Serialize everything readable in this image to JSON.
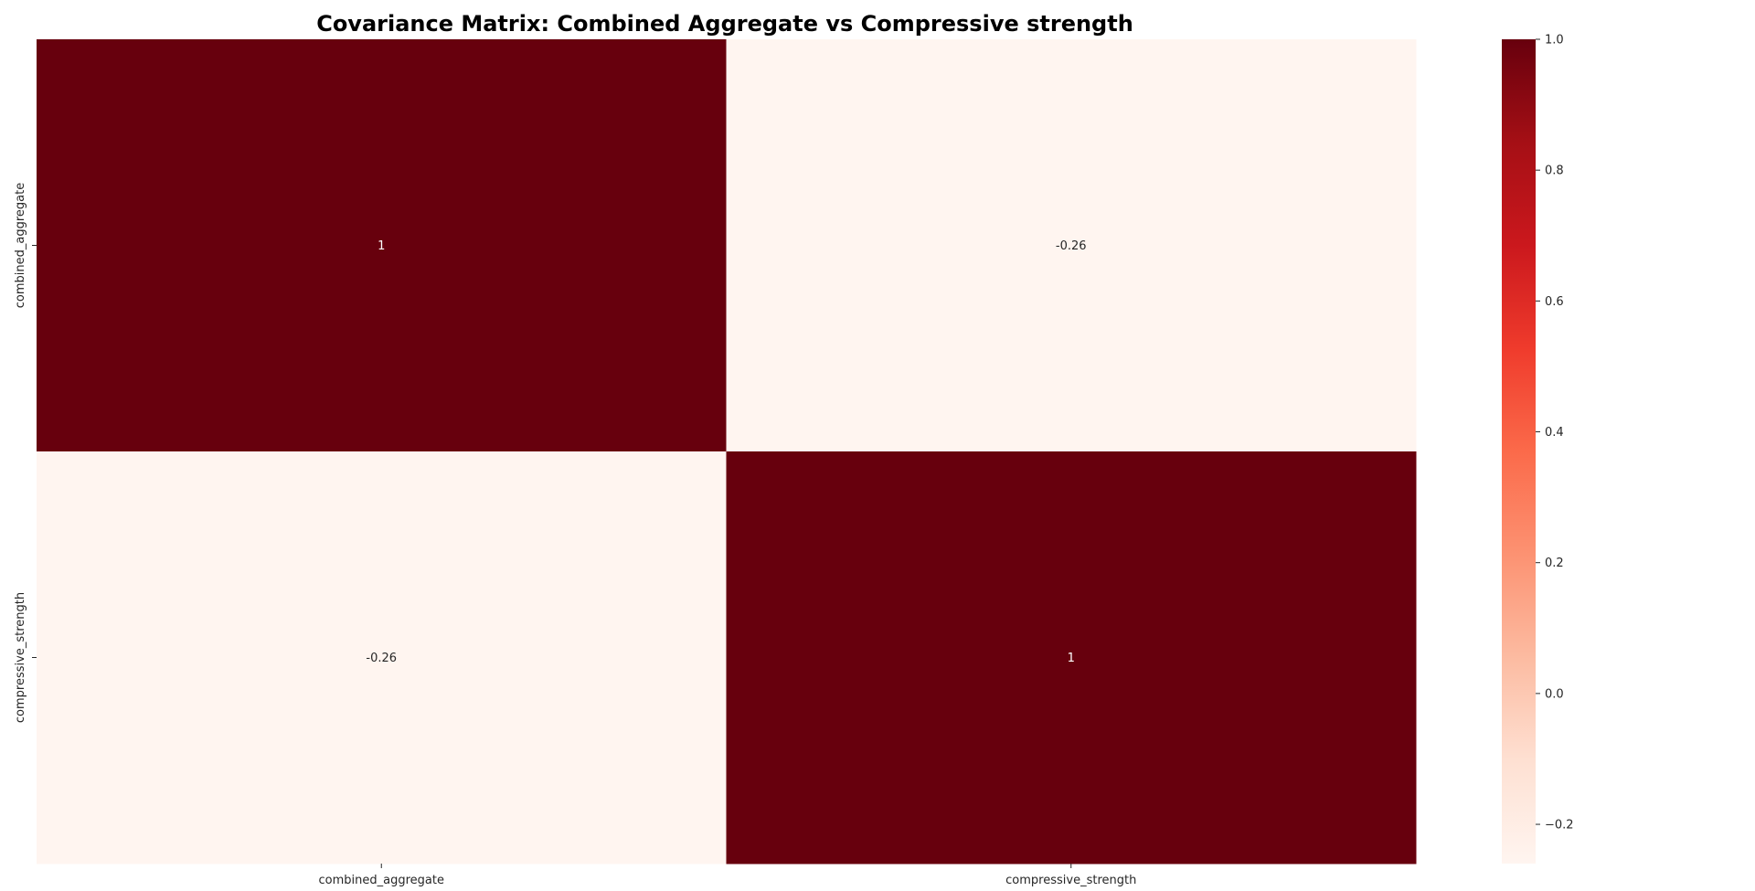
{
  "chart_data": {
    "type": "heatmap",
    "title": "Covariance Matrix: Combined Aggregate vs Compressive strength",
    "xlabel": "",
    "ylabel": "",
    "x_categories": [
      "combined_aggregate",
      "compressive_strength"
    ],
    "y_categories": [
      "combined_aggregate",
      "compressive_strength"
    ],
    "values": [
      [
        1,
        -0.26
      ],
      [
        -0.26,
        1
      ]
    ],
    "annotations": [
      [
        "1",
        "-0.26"
      ],
      [
        "-0.26",
        "1"
      ]
    ],
    "colormap": "Reds",
    "vmin": -0.26,
    "vmax": 1,
    "colorbar_ticks": [
      1.0,
      0.8,
      0.6,
      0.4,
      0.2,
      0.0,
      -0.2
    ],
    "colorbar_tick_labels": [
      "1.0",
      "0.8",
      "0.6",
      "0.4",
      "0.2",
      "0.0",
      "−0.2"
    ],
    "colors": {
      "high": "#67000d",
      "low": "#fff5f0",
      "annot_on_dark": "#ffffff",
      "annot_on_light": "#262626"
    },
    "grid": false,
    "legend": "colorbar-right"
  }
}
